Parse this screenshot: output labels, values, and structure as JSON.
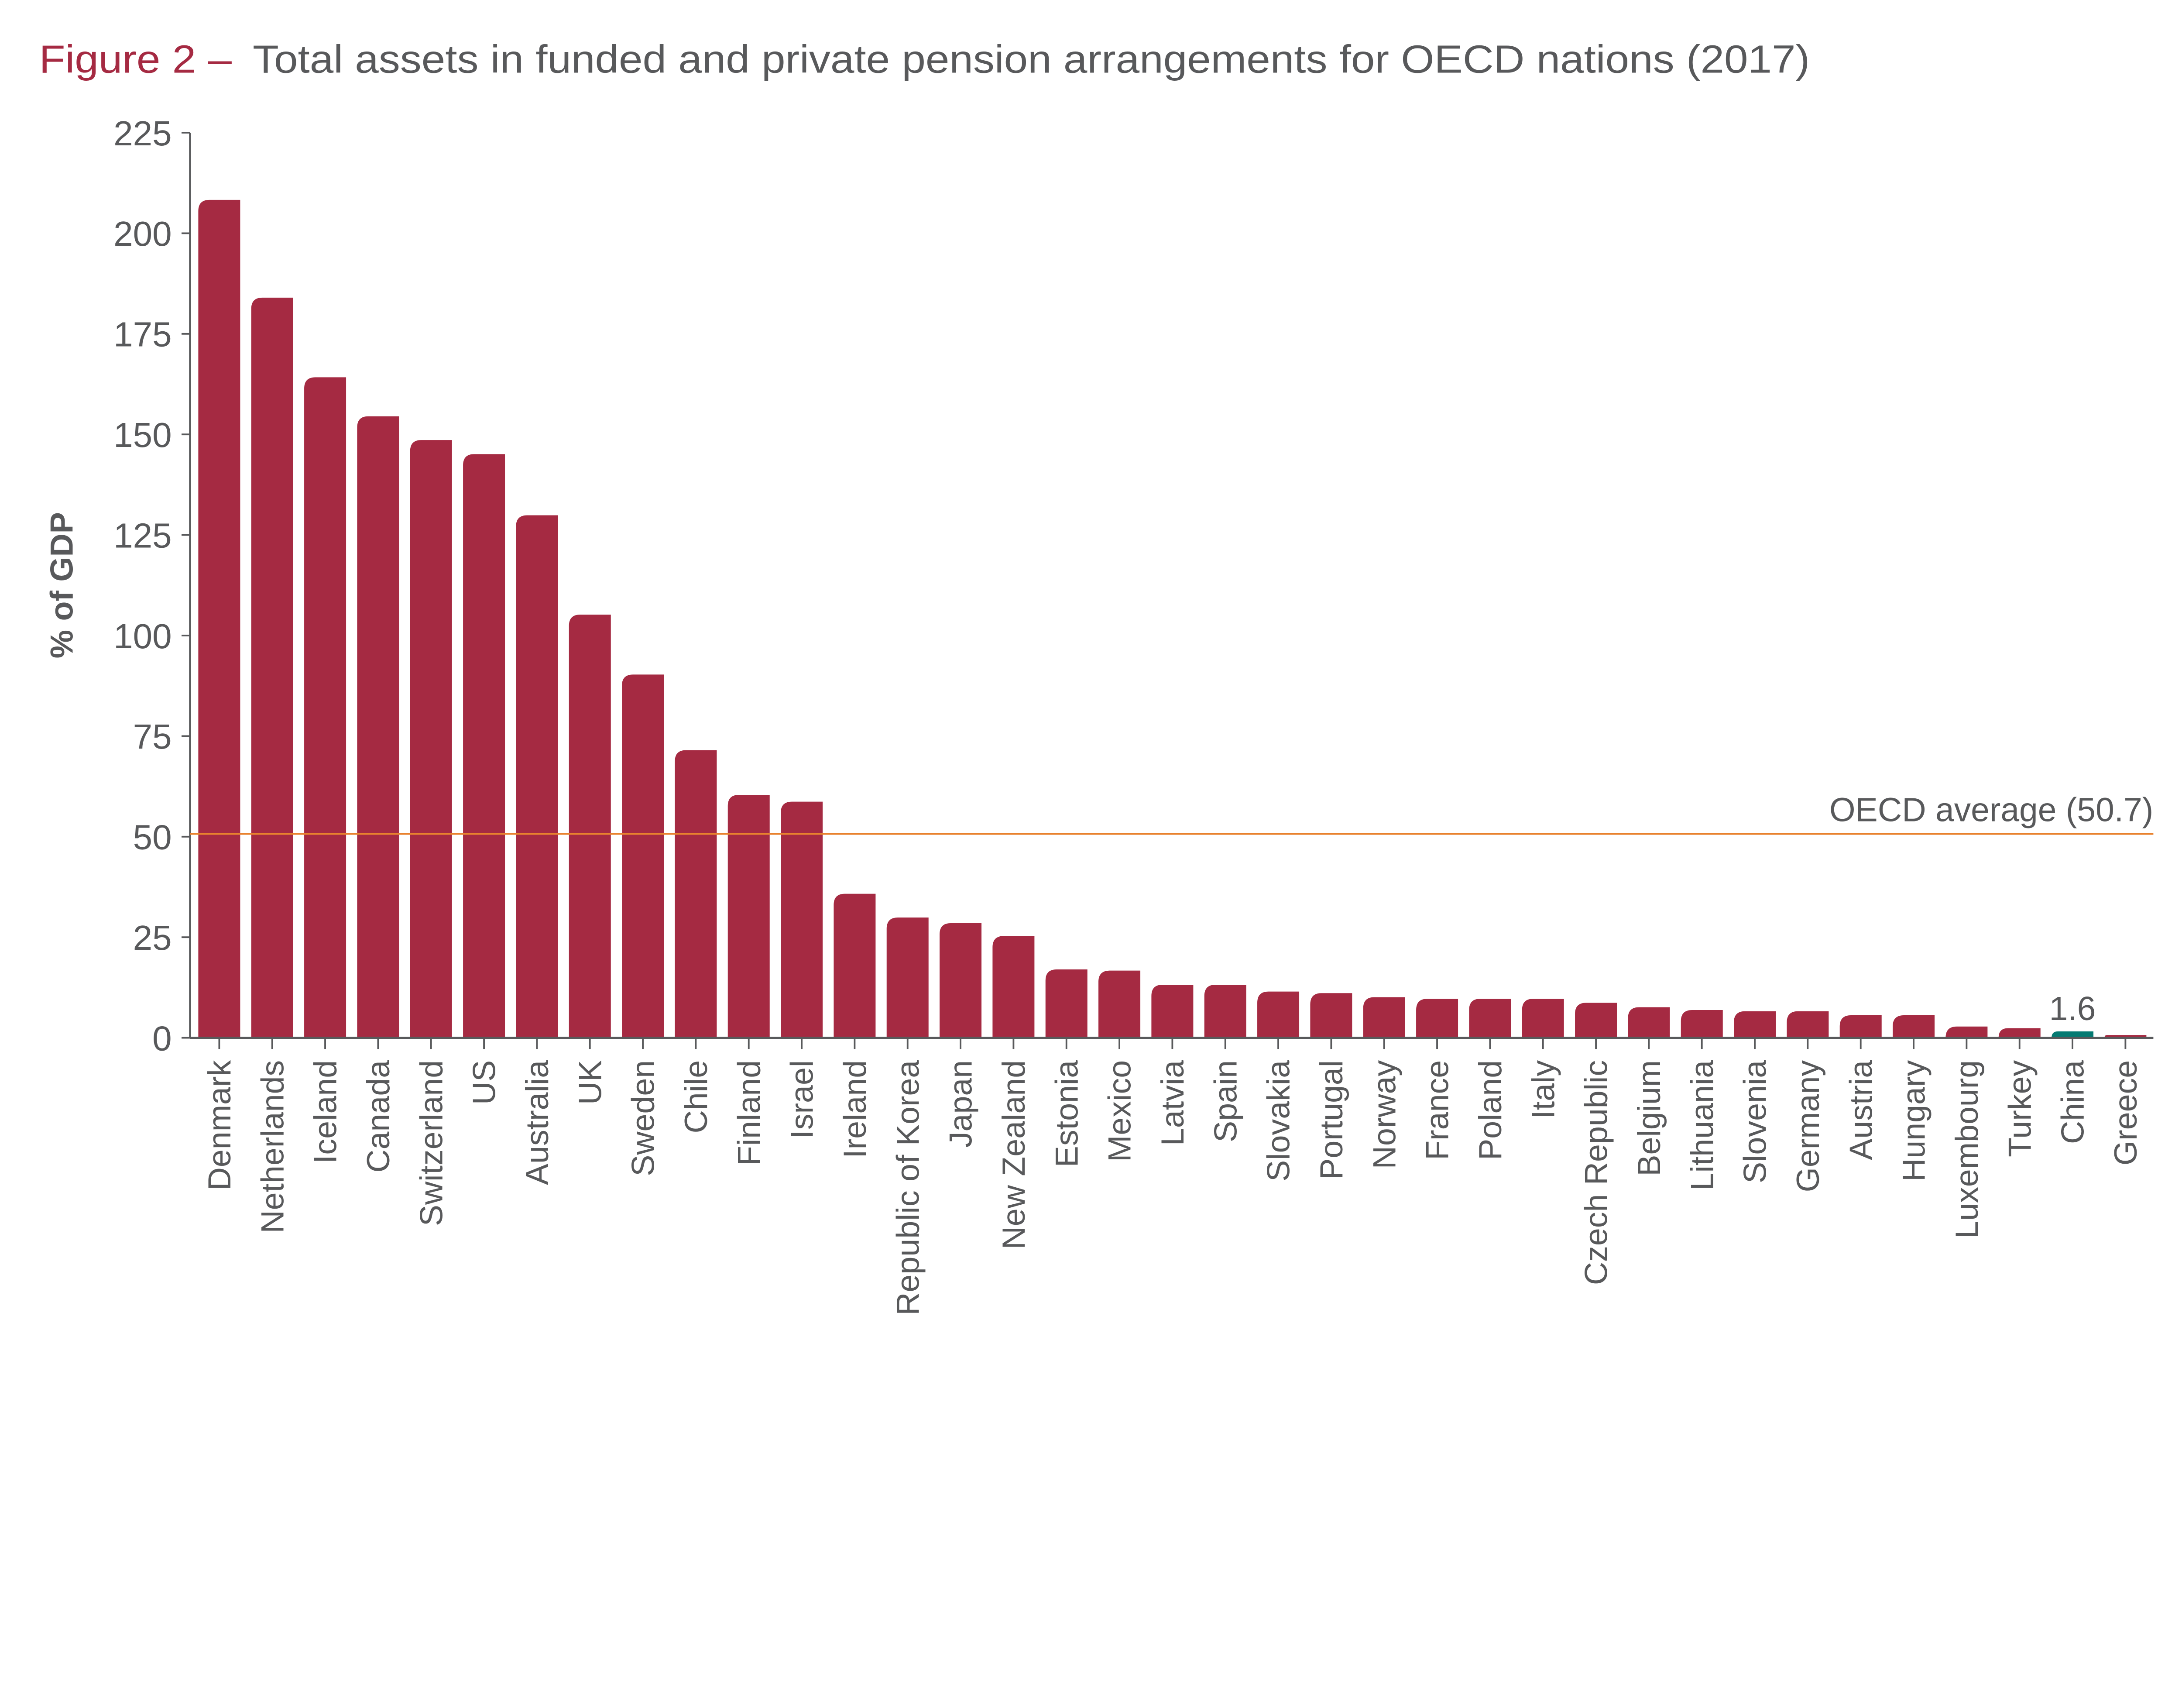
{
  "header": {
    "figure_label": "Figure 2 –",
    "title": "Total assets in funded and private pension arrangements for OECD nations (2017)"
  },
  "chart_data": {
    "type": "bar",
    "title": "Figure 2 – Total assets in funded and private pension arrangements for OECD nations (2017)",
    "xlabel": "",
    "ylabel": "% of GDP",
    "ylim": [
      0,
      225
    ],
    "yticks": [
      0,
      25,
      50,
      75,
      100,
      125,
      150,
      175,
      200,
      225
    ],
    "grid": false,
    "categories": [
      "Denmark",
      "Netherlands",
      "Iceland",
      "Canada",
      "Switzerland",
      "US",
      "Australia",
      "UK",
      "Sweden",
      "Chile",
      "Finland",
      "Israel",
      "Ireland",
      "Republic of Korea",
      "Japan",
      "New Zealand",
      "Estonia",
      "Mexico",
      "Latvia",
      "Spain",
      "Slovakia",
      "Portugal",
      "Norway",
      "France",
      "Poland",
      "Italy",
      "Czech Republic",
      "Belgium",
      "Lithuania",
      "Slovenia",
      "Germany",
      "Austria",
      "Hungary",
      "Luxembourg",
      "Turkey",
      "China",
      "Greece"
    ],
    "values": [
      208.3,
      184.0,
      164.2,
      154.5,
      148.6,
      145.1,
      129.9,
      105.2,
      90.3,
      71.5,
      60.4,
      58.7,
      35.8,
      29.9,
      28.5,
      25.3,
      17.0,
      16.7,
      13.2,
      13.2,
      11.5,
      11.1,
      10.1,
      9.7,
      9.7,
      9.7,
      8.7,
      7.6,
      6.9,
      6.6,
      6.6,
      5.6,
      5.6,
      2.8,
      2.4,
      1.6,
      0.7
    ],
    "highlight": {
      "category": "China",
      "label": "1.6",
      "color": "#047a72"
    },
    "reference_line": {
      "value": 50.7,
      "label": "OECD average (50.7)",
      "color": "#e8822e"
    },
    "colors": {
      "bar": "#a52a42",
      "axis": "#58595b",
      "title_accent": "#a52a42",
      "text": "#58595b"
    }
  }
}
